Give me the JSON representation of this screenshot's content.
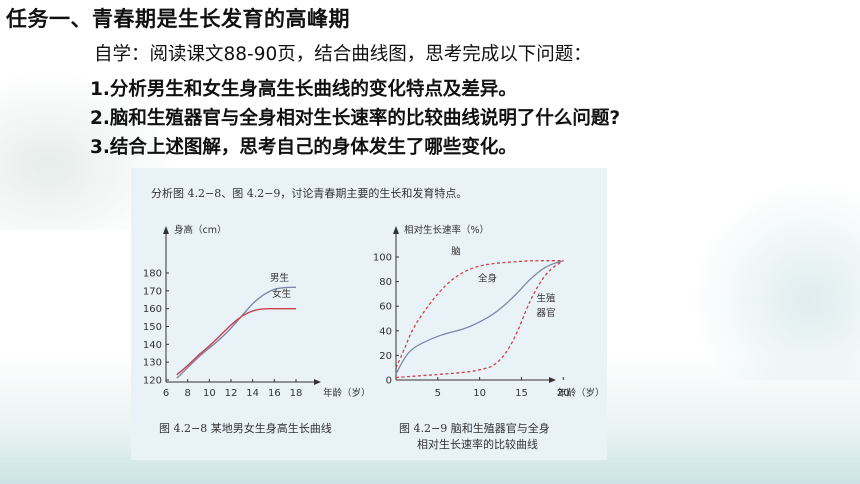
{
  "slide": {
    "title": "任务一、青春期是生长发育的高峰期",
    "self_study": "自学：阅读课文88-90页，结合曲线图，思考完成以下问题：",
    "questions": [
      "1.分析男生和女生身高生长曲线的变化特点及差异。",
      "2.脑和生殖器官与全身相对生长速率的比较曲线说明了什么问题?",
      "3.结合上述图解，思考自己的身体发生了哪些变化。"
    ]
  },
  "figure": {
    "intro": "分析图 4.2−8、图 4.2−9，讨论青春期主要的生长和发育特点。",
    "caption_left": "图 4.2−8   某地男女生身高生长曲线",
    "caption_right_1": "图 4.2−9   脑和生殖器官与全身",
    "caption_right_2": "相对生长速率的比较曲线"
  },
  "colors": {
    "boy": "#7a8aa8",
    "girl": "#d0404a",
    "body": "#7a8aa8",
    "dashed": "#d0404a",
    "panel": "#e8f2f7"
  },
  "chart_data": [
    {
      "type": "line",
      "title": "",
      "ylabel": "身高（cm）",
      "xlabel": "年龄（岁）",
      "x_ticks": [
        6,
        8,
        10,
        12,
        14,
        16,
        18
      ],
      "y_ticks": [
        120,
        130,
        140,
        150,
        160,
        170,
        180
      ],
      "xlim": [
        6,
        18
      ],
      "ylim": [
        120,
        180
      ],
      "series": [
        {
          "name": "男生",
          "x": [
            7,
            8,
            9,
            10,
            11,
            12,
            13,
            14,
            15,
            16,
            17,
            18
          ],
          "values": [
            121,
            127,
            133,
            138,
            143,
            149,
            156,
            163,
            168,
            171,
            172,
            172
          ]
        },
        {
          "name": "女生",
          "x": [
            7,
            8,
            9,
            10,
            11,
            12,
            13,
            14,
            15,
            16,
            17,
            18
          ],
          "values": [
            123,
            128,
            134,
            139,
            145,
            151,
            156,
            159,
            160,
            160,
            160,
            160
          ]
        }
      ]
    },
    {
      "type": "line",
      "title": "",
      "ylabel": "相对生长速率（%）",
      "xlabel": "年龄（岁）",
      "x_ticks": [
        5,
        10,
        15,
        20
      ],
      "y_ticks": [
        0,
        20,
        40,
        60,
        80,
        100
      ],
      "xlim": [
        0,
        22
      ],
      "ylim": [
        0,
        100
      ],
      "series": [
        {
          "name": "脑",
          "style": "dashed",
          "x": [
            0,
            1,
            2,
            4,
            6,
            8,
            10,
            12,
            14,
            16,
            18,
            20
          ],
          "values": [
            10,
            25,
            42,
            62,
            78,
            88,
            93,
            95,
            96,
            97,
            97,
            97
          ]
        },
        {
          "name": "全身",
          "style": "solid",
          "x": [
            0,
            1,
            2,
            4,
            6,
            8,
            10,
            12,
            14,
            16,
            18,
            20
          ],
          "values": [
            5,
            18,
            26,
            33,
            38,
            41,
            47,
            55,
            67,
            82,
            93,
            97
          ]
        },
        {
          "name": "生殖器官",
          "style": "dashed",
          "x": [
            0,
            2,
            4,
            6,
            8,
            10,
            12,
            14,
            16,
            18,
            20
          ],
          "values": [
            2,
            3,
            4,
            5,
            6,
            8,
            12,
            30,
            65,
            88,
            97
          ]
        }
      ]
    }
  ]
}
